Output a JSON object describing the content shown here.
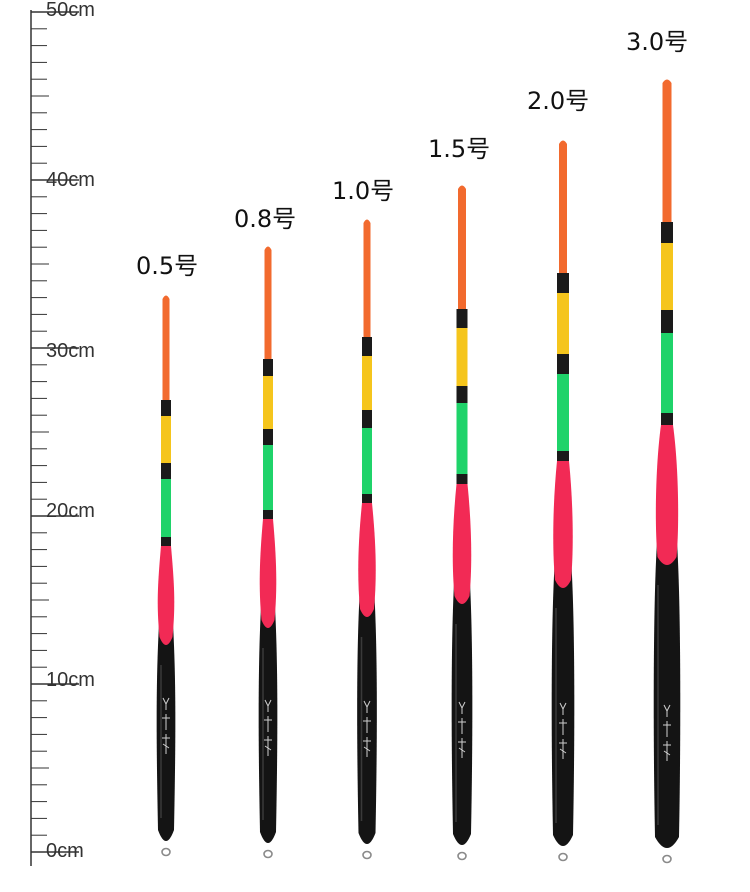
{
  "ruler": {
    "labels": [
      "50cm",
      "40cm",
      "30cm",
      "20cm",
      "10cm",
      "0cm"
    ]
  },
  "floats": [
    {
      "label": "0.5号"
    },
    {
      "label": "0.8号"
    },
    {
      "label": "1.0号"
    },
    {
      "label": "1.5号"
    },
    {
      "label": "2.0号"
    },
    {
      "label": "3.0号"
    }
  ],
  "colors": {
    "tip": "#f26a2e",
    "band": "#1a1a1a",
    "yellow": "#f5c51c",
    "green": "#1fd36a",
    "red": "#f22a55",
    "body": "#141414"
  }
}
